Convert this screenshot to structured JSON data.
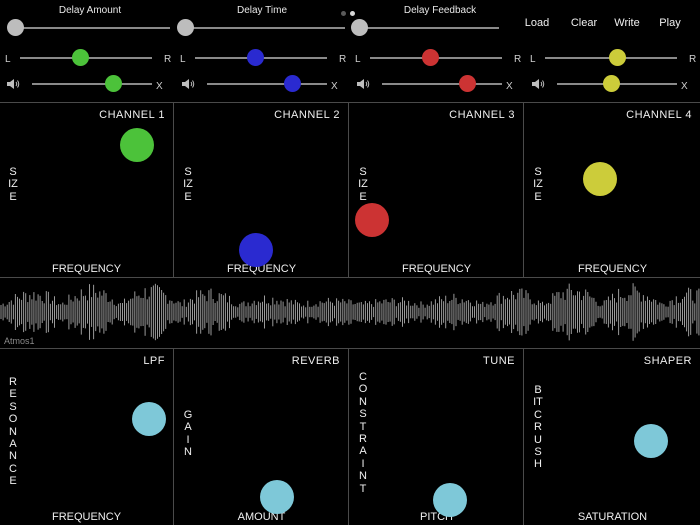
{
  "page_dots": [
    {
      "color": "#5a5a5a"
    },
    {
      "color": "#d8d8d8"
    }
  ],
  "top": {
    "delay_amount_label": "Delay Amount",
    "delay_time_label": "Delay Time",
    "delay_feedback_label": "Delay Feedback",
    "pan_left_label": "L",
    "pan_right_label": "R",
    "mute_label": "X",
    "buttons": {
      "load": "Load",
      "clear": "Clear",
      "write": "Write",
      "play": "Play"
    }
  },
  "channels": [
    {
      "title": "CHANNEL 1",
      "x_label": "FREQUENCY",
      "y_label": "SIZE",
      "color": "#4cc23a",
      "pan": 0.46,
      "volume": 0.68
    },
    {
      "title": "CHANNEL 2",
      "x_label": "FREQUENCY",
      "y_label": "SIZE",
      "color": "#2a2ad0",
      "pan": 0.46,
      "volume": 0.71
    },
    {
      "title": "CHANNEL 3",
      "x_label": "FREQUENCY",
      "y_label": "SIZE",
      "color": "#cc3333",
      "pan": 0.46,
      "volume": 0.71
    },
    {
      "title": "CHANNEL 4",
      "x_label": "FREQUENCY",
      "y_label": "SIZE",
      "color": "#cccc3a",
      "pan": 0.55,
      "volume": 0.45
    }
  ],
  "effects": [
    {
      "title": "LPF",
      "x_label": "FREQUENCY",
      "y_label": "RESONANCE",
      "color": "#7ec8d8"
    },
    {
      "title": "REVERB",
      "x_label": "AMOUNT",
      "y_label": "GAIN",
      "color": "#7ec8d8"
    },
    {
      "title": "TUNE",
      "x_label": "PITCH",
      "y_label": "CONSTRAINT",
      "color": "#7ec8d8"
    },
    {
      "title": "SHAPER",
      "x_label": "SATURATION",
      "y_label": "BITCRUSH",
      "color": "#7ec8d8"
    }
  ],
  "waveform": {
    "name": "Atmos1",
    "color": "#9a9a9a"
  },
  "colors": {
    "slider_knob": "#bdbdbd",
    "track": "#8a8a8a"
  }
}
